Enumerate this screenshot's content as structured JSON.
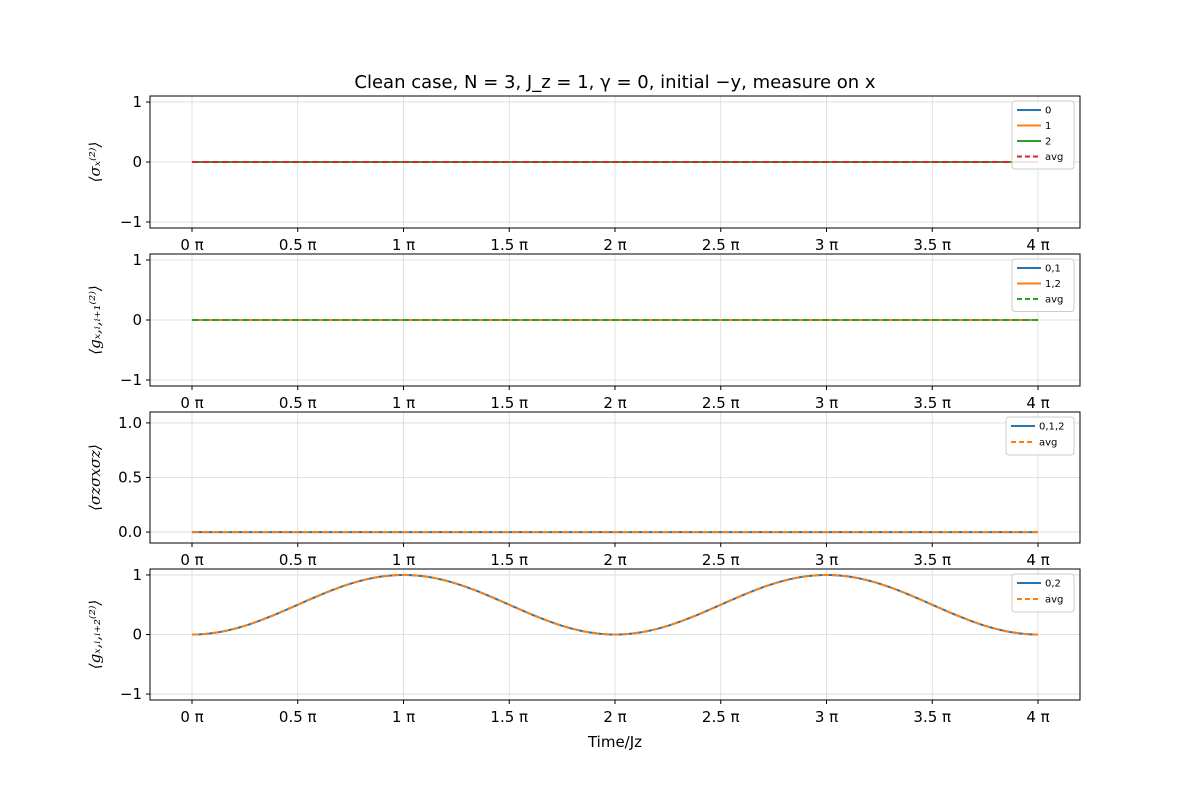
{
  "chart_data": {
    "title": "Clean case, N = 3, J_z = 1, γ = 0, initial −y, measure on x",
    "xlabel": "Time/Jz",
    "x_range": [
      0,
      4
    ],
    "x_unit": "π",
    "x_tick_labels": [
      "0 π",
      "0.5 π",
      "1 π",
      "1.5 π",
      "2 π",
      "2.5 π",
      "3 π",
      "3.5 π",
      "4 π"
    ],
    "colors": {
      "C0": "#1f77b4",
      "C1": "#ff7f0e",
      "C2": "#2ca02c",
      "C3": "#d62728"
    },
    "subplots": [
      {
        "type": "line",
        "ylabel": "⟨σₓ⁽²⁾⟩",
        "ylim": [
          -1.1,
          1.1
        ],
        "y_ticks": [
          -1,
          0,
          1
        ],
        "y_tick_labels": [
          "−1",
          "0",
          "1"
        ],
        "legend": "top-right",
        "series": [
          {
            "name": "0",
            "color": "#1f77b4",
            "dash": false,
            "formula": "zero"
          },
          {
            "name": "1",
            "color": "#ff7f0e",
            "dash": false,
            "formula": "zero"
          },
          {
            "name": "2",
            "color": "#2ca02c",
            "dash": false,
            "formula": "zero"
          },
          {
            "name": "avg",
            "color": "#d62728",
            "dash": true,
            "formula": "zero"
          }
        ]
      },
      {
        "type": "line",
        "ylabel": "⟨gₓ,ᵢ,ᵢ₊₁⁽²⁾⟩",
        "ylim": [
          -1.1,
          1.1
        ],
        "y_ticks": [
          -1,
          0,
          1
        ],
        "y_tick_labels": [
          "−1",
          "0",
          "1"
        ],
        "legend": "top-right",
        "series": [
          {
            "name": "0,1",
            "color": "#1f77b4",
            "dash": false,
            "formula": "zero"
          },
          {
            "name": "1,2",
            "color": "#ff7f0e",
            "dash": false,
            "formula": "zero"
          },
          {
            "name": "avg",
            "color": "#2ca02c",
            "dash": true,
            "formula": "zero"
          }
        ]
      },
      {
        "type": "line",
        "ylabel": "⟨σzσxσz⟩",
        "ylim": [
          -0.1,
          1.1
        ],
        "y_ticks": [
          0,
          0.5,
          1
        ],
        "y_tick_labels": [
          "0.0",
          "0.5",
          "1.0"
        ],
        "legend": "top-right",
        "series": [
          {
            "name": "0,1,2",
            "color": "#1f77b4",
            "dash": false,
            "formula": "zero"
          },
          {
            "name": "avg",
            "color": "#ff7f0e",
            "dash": true,
            "formula": "zero"
          }
        ]
      },
      {
        "type": "line",
        "ylabel": "⟨gₓ,ᵢ,ᵢ₊₂⁽²⁾⟩",
        "ylim": [
          -1.1,
          1.1
        ],
        "y_ticks": [
          -1,
          0,
          1
        ],
        "y_tick_labels": [
          "−1",
          "0",
          "1"
        ],
        "legend": "top-right",
        "series": [
          {
            "name": "0,2",
            "color": "#1f77b4",
            "dash": false,
            "formula": "sin2_half_pi_t"
          },
          {
            "name": "avg",
            "color": "#ff7f0e",
            "dash": true,
            "formula": "sin2_half_pi_t"
          }
        ]
      }
    ]
  }
}
